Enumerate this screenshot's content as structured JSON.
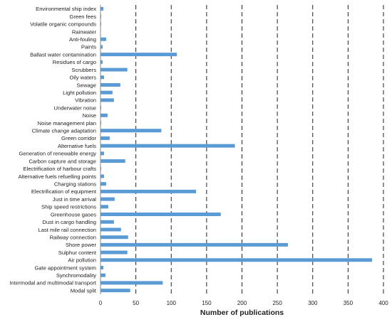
{
  "chart_data": {
    "type": "bar",
    "orientation": "horizontal",
    "xlabel": "Number of publications",
    "ylabel": "",
    "title": "",
    "xlim": [
      0,
      400
    ],
    "xticks": [
      0,
      50,
      100,
      150,
      200,
      250,
      300,
      350,
      400
    ],
    "grid": "vertical-dashed",
    "bar_color": "#5b9bd5",
    "categories": [
      "Environmental ship index",
      "Green fees",
      "Volatile organic compounds",
      "Rainwater",
      "Anti-fouling",
      "Paints",
      "Ballast water contamination",
      "Residues of cargo",
      "Scrubbers",
      "Oily waters",
      "Sewage",
      "Light pollution",
      "Vibration",
      "Underwater noise",
      "Noise",
      "Noise management plan",
      "Climate change adaptation",
      "Green corridor",
      "Alternative fuels",
      "Generation of renewable energy",
      "Carbon capture and storage",
      "Electrification of harbour crafts",
      "Alternative fuels refuelling points",
      "Charging stations",
      "Electrification of  equipment",
      "Just in time arrival",
      "Ship speed restrictions",
      "Greenhouse gases",
      "Dust in cargo handling",
      "Last mile rail connection",
      "Railway connection",
      "Shore power",
      "Sulphur content",
      "Air pollution",
      "Gate appointment system",
      "Synchromodality",
      "Intermodal and multimodal transport",
      "Modal split"
    ],
    "values": [
      4,
      1,
      1,
      0,
      8,
      3,
      108,
      3,
      38,
      5,
      28,
      17,
      19,
      1,
      10,
      1,
      86,
      13,
      190,
      5,
      35,
      1,
      5,
      8,
      135,
      20,
      11,
      170,
      19,
      29,
      39,
      265,
      38,
      384,
      4,
      7,
      88,
      42
    ]
  }
}
